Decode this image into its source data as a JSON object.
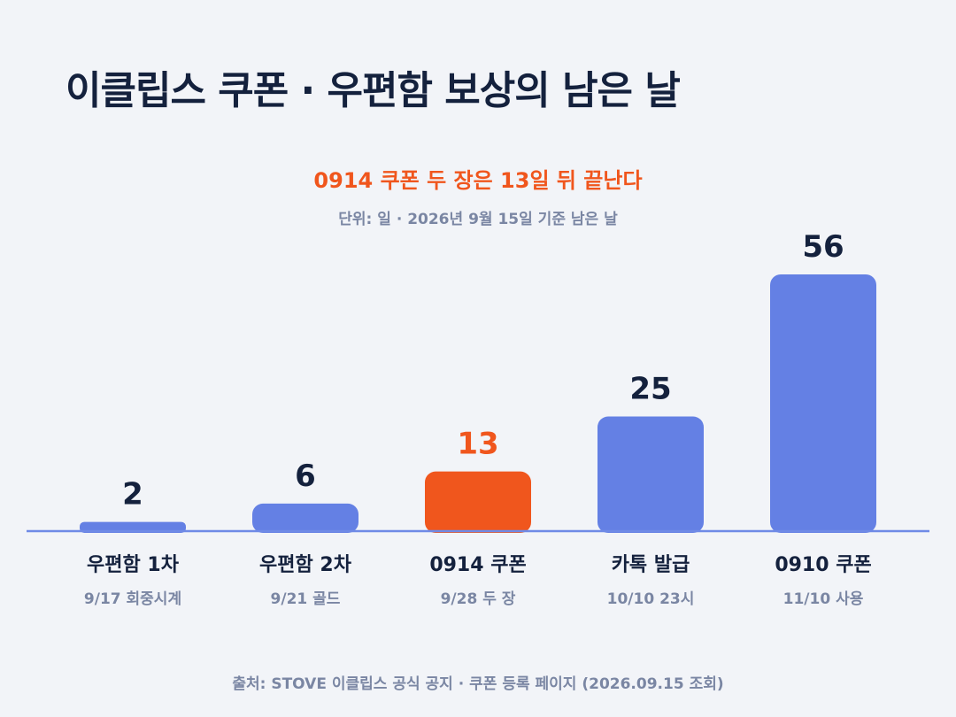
{
  "title": "이클립스 쿠폰 · 우편함 보상의 남은 날",
  "colors": {
    "background": "#F2F4F8",
    "bar_default": "#6480E4",
    "bar_highlight": "#F0561D",
    "value_default": "#14213D",
    "value_highlight": "#F0561D",
    "baseline": "#6F8AE6",
    "category_text": "#14213D",
    "sub_text": "#7A86A3"
  },
  "chart_data": {
    "type": "bar",
    "title": "0914 쿠폰 두 장은 13일 뒤 끝난다",
    "subtitle": "단위: 일 · 2026년 9월 15일 기준 남은 날",
    "categories": [
      "우편함 1차",
      "우편함 2차",
      "0914 쿠폰",
      "카톡 발급",
      "0910 쿠폰"
    ],
    "category_sublabels": [
      "9/17 회중시계",
      "9/21 골드",
      "9/28 두 장",
      "10/10 23시",
      "11/10 사용"
    ],
    "values": [
      2,
      6,
      13,
      25,
      56
    ],
    "highlight_index": 2,
    "ylim": [
      0,
      56
    ],
    "grid": false,
    "legend": "none",
    "source": "출처: STOVE 이클립스 공식 공지 · 쿠폰 등록 페이지 (2026.09.15 조회)"
  }
}
